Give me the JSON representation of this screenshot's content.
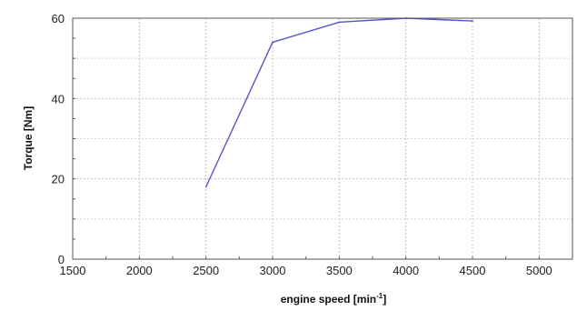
{
  "chart_data": {
    "type": "line",
    "title": "",
    "xlabel": "engine speed [min-1]",
    "xlabel_base": "engine speed [min",
    "xlabel_sup": "-1",
    "xlabel_end": "]",
    "ylabel": "Torque [Nm]",
    "xlim": [
      1500,
      5250
    ],
    "ylim": [
      0,
      60
    ],
    "xticks": [
      1500,
      2000,
      2500,
      3000,
      3500,
      4000,
      4500,
      5000
    ],
    "yticks": [
      0,
      20,
      40,
      60
    ],
    "grid": true,
    "series": [
      {
        "x": [
          2500,
          3000,
          3500,
          4000,
          4500
        ],
        "y": [
          18,
          54,
          59,
          60,
          59.3
        ],
        "color": "#5555cc"
      }
    ]
  }
}
